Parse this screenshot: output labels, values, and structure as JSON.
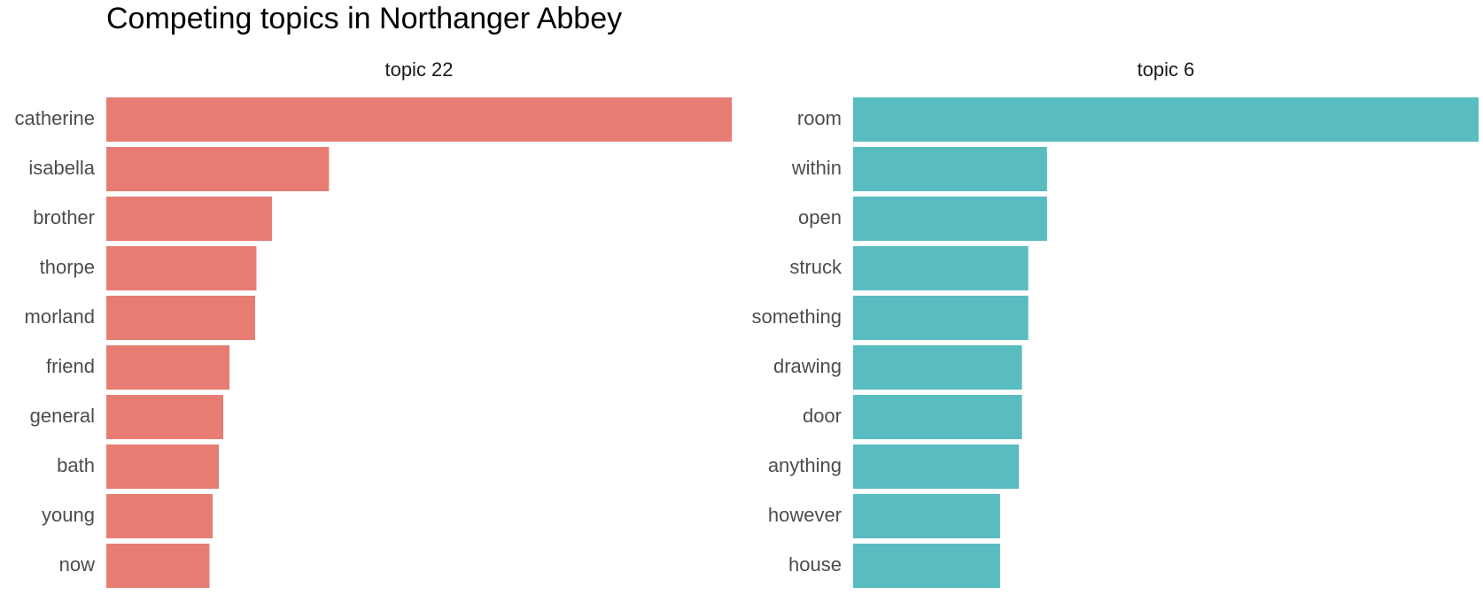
{
  "chart_data": {
    "type": "bar",
    "orientation": "horizontal",
    "title": "Competing topics in Northanger Abbey",
    "xlabel": "",
    "ylabel": "",
    "grid": false,
    "legend": "none",
    "panels": [
      {
        "facet_label": "topic 22",
        "color": "#E77C73",
        "categories": [
          "catherine",
          "isabella",
          "brother",
          "thorpe",
          "morland",
          "friend",
          "general",
          "bath",
          "young",
          "now"
        ],
        "values": [
          1.0,
          0.356,
          0.265,
          0.24,
          0.238,
          0.197,
          0.187,
          0.18,
          0.17,
          0.165
        ],
        "xlim": [
          0,
          1.0
        ]
      },
      {
        "facet_label": "topic 6",
        "color": "#58BCC1",
        "categories": [
          "room",
          "within",
          "open",
          "struck",
          "something",
          "drawing",
          "door",
          "anything",
          "however",
          "house"
        ],
        "values": [
          1.0,
          0.31,
          0.31,
          0.28,
          0.28,
          0.27,
          0.27,
          0.265,
          0.235,
          0.235
        ],
        "xlim": [
          0,
          1.0
        ]
      }
    ]
  }
}
